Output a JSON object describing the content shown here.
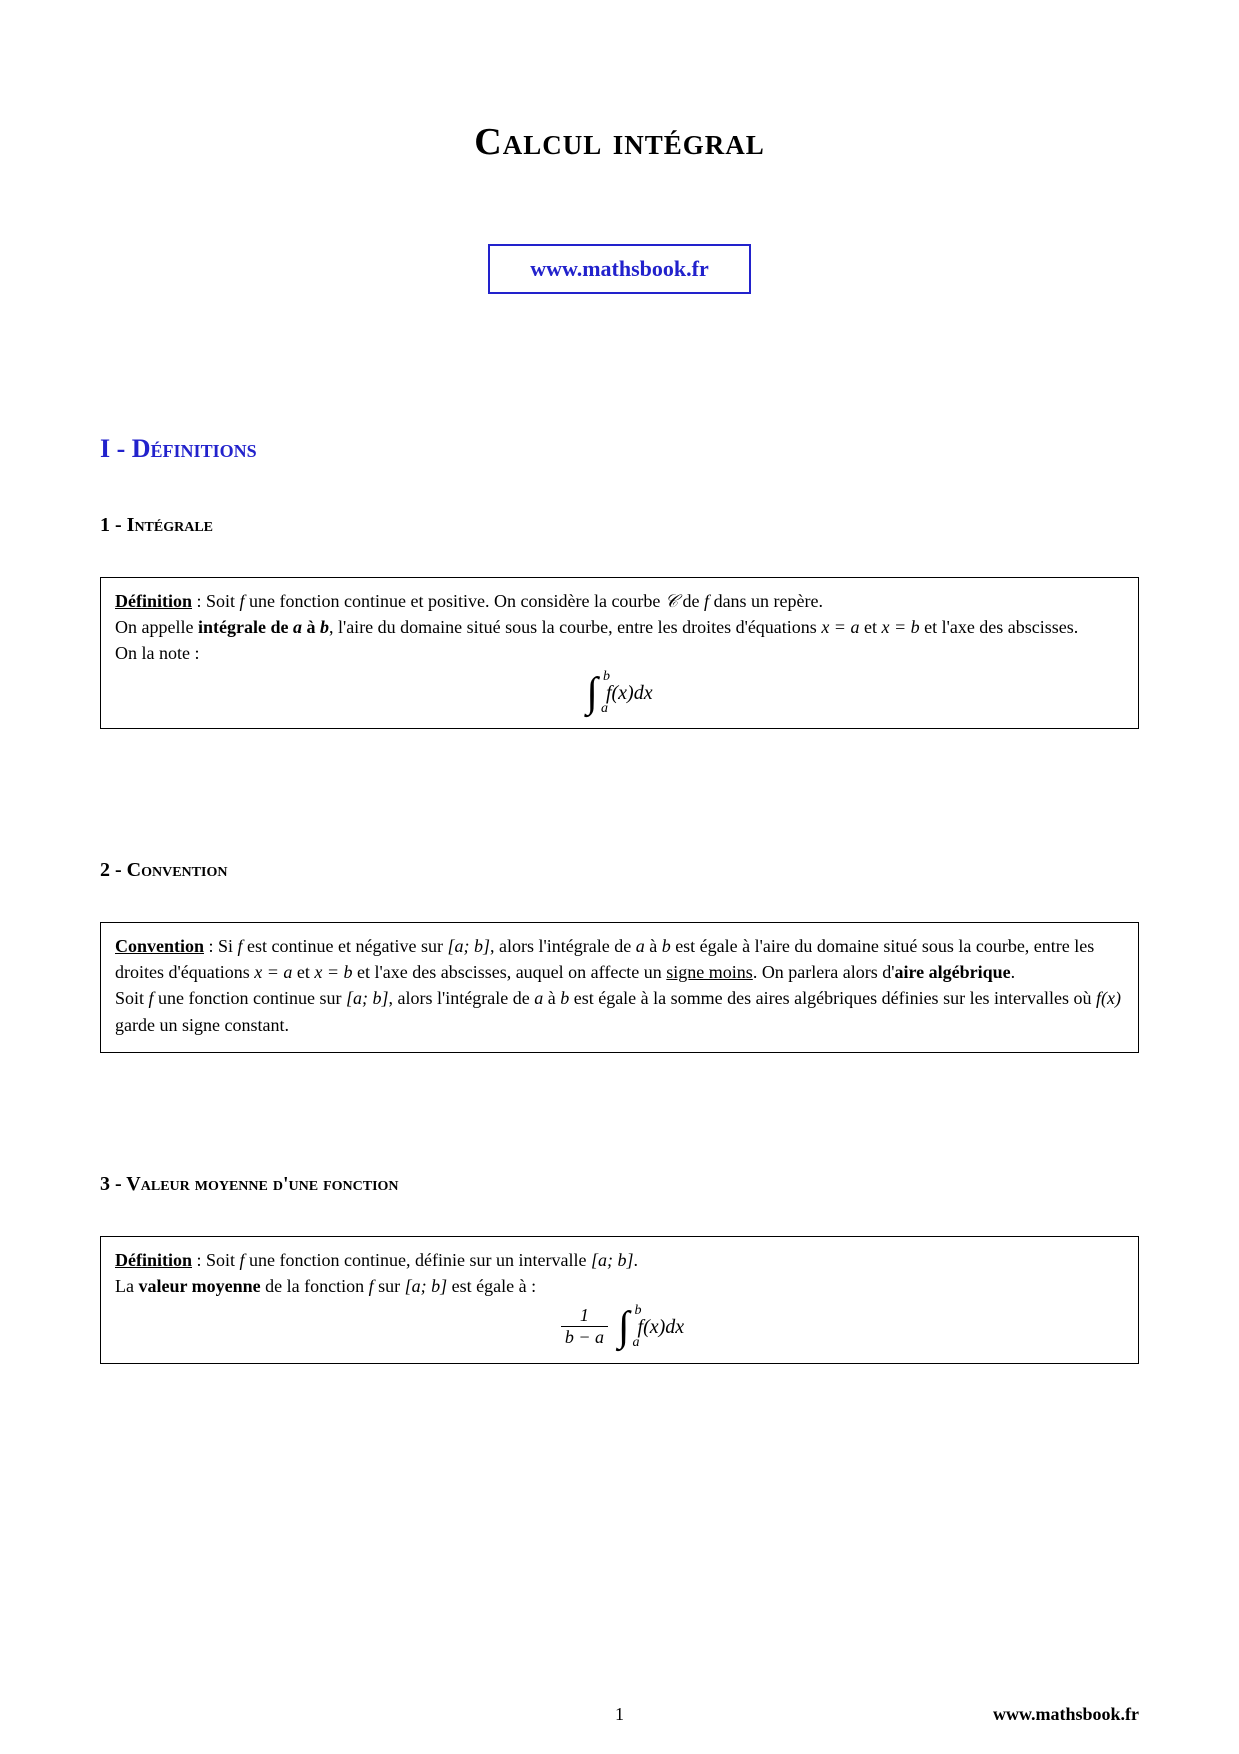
{
  "title": "Calcul intégral",
  "site_link": "www.mathsbook.fr",
  "colors": {
    "accent": "#2222cc",
    "text": "#000000",
    "bg": "#ffffff",
    "box_border": "#000000"
  },
  "section1": {
    "heading": "I - Définitions"
  },
  "sub1": {
    "heading": "1 - Intégrale",
    "label": "Définition",
    "p1a": " : Soit ",
    "p1b": "f",
    "p1c": " une fonction continue et positive. On considère la courbe ",
    "p1d": "𝒞",
    "p1e": " de ",
    "p1f": "f",
    "p1g": " dans un repère.",
    "p2a": "On appelle ",
    "p2b": "intégrale de ",
    "p2c": "a",
    "p2d": " à ",
    "p2e": "b",
    "p2f": ", l'aire du domaine situé sous la courbe, entre les droites d'équations ",
    "p2g": "x = a",
    "p2h": " et ",
    "p2i": "x = b",
    "p2j": " et l'axe des abscisses.",
    "p3": "On la note :",
    "formula": {
      "lower": "a",
      "upper": "b",
      "body": "f(x)dx"
    }
  },
  "sub2": {
    "heading": "2 - Convention",
    "label": "Convention",
    "p1a": " : Si ",
    "p1b": "f",
    "p1c": " est continue et négative sur ",
    "p1d": "[a; b]",
    "p1e": ", alors l'intégrale de ",
    "p1f": "a",
    "p1g": " à ",
    "p1h": "b",
    "p1i": " est égale à l'aire du domaine situé sous la courbe, entre les droites d'équations ",
    "p1j": "x = a",
    "p1k": " et ",
    "p1l": "x = b",
    "p1m": " et l'axe des abscisses, auquel on affecte un ",
    "p1n": "signe moins",
    "p1o": ". On parlera alors d'",
    "p1p": "aire algébrique",
    "p1q": ".",
    "p2a": "Soit ",
    "p2b": "f",
    "p2c": " une fonction continue sur ",
    "p2d": "[a; b]",
    "p2e": ", alors l'intégrale de ",
    "p2f": "a",
    "p2g": " à ",
    "p2h": "b",
    "p2i": " est égale à la somme des aires algébriques définies sur les intervalles où ",
    "p2j": "f(x)",
    "p2k": " garde un signe constant."
  },
  "sub3": {
    "heading": "3 - Valeur moyenne d'une fonction",
    "label": "Définition",
    "p1a": " : Soit ",
    "p1b": "f",
    "p1c": " une fonction continue, définie sur un intervalle ",
    "p1d": "[a; b]",
    "p1e": ".",
    "p2a": "La ",
    "p2b": "valeur moyenne",
    "p2c": " de la fonction ",
    "p2d": "f",
    "p2e": " sur ",
    "p2f": "[a; b]",
    "p2g": " est égale à :",
    "formula": {
      "frac_num": "1",
      "frac_den": "b − a",
      "lower": "a",
      "upper": "b",
      "body": "f(x)dx"
    }
  },
  "footer": {
    "page": "1",
    "site": "www.mathsbook.fr"
  }
}
